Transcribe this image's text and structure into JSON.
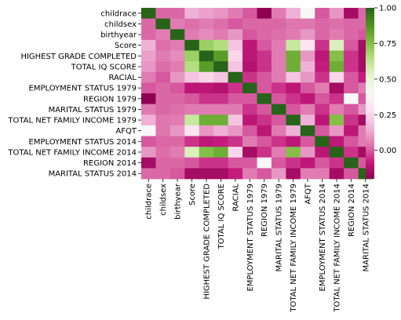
{
  "chart_data": {
    "type": "heatmap",
    "title": "",
    "xlabel": "",
    "ylabel": "",
    "variables": [
      "childrace",
      "childsex",
      "birthyear",
      "Score",
      "HIGHEST GRADE COMPLETED",
      "TOTAL IQ SCORE",
      "RACIAL",
      "EMPLOYMENT STATUS 1979",
      "REGION 1979",
      "MARITAL STATUS 1979",
      "TOTAL NET FAMILY INCOME 1979",
      "AFQT",
      "EMPLOYMENT STATUS 2014",
      "TOTAL NET FAMILY INCOME 2014",
      "REGION 2014",
      "MARITAL STATUS 2014"
    ],
    "matrix": [
      [
        1.0,
        0.02,
        0.02,
        0.15,
        0.12,
        0.1,
        0.05,
        0.0,
        -0.2,
        0.05,
        0.15,
        0.4,
        0.0,
        0.1,
        -0.15,
        0.02
      ],
      [
        0.02,
        1.0,
        0.05,
        0.03,
        0.05,
        0.03,
        0.0,
        0.02,
        0.02,
        0.02,
        0.04,
        0.04,
        0.02,
        0.03,
        0.02,
        0.02
      ],
      [
        0.02,
        0.05,
        1.0,
        0.05,
        0.08,
        0.05,
        0.1,
        0.0,
        0.02,
        0.03,
        0.05,
        0.1,
        0.02,
        0.05,
        0.02,
        0.0
      ],
      [
        0.15,
        0.03,
        0.05,
        1.0,
        0.7,
        0.65,
        0.2,
        -0.1,
        0.0,
        0.05,
        0.6,
        0.3,
        -0.05,
        0.55,
        0.0,
        -0.15
      ],
      [
        0.12,
        0.05,
        0.08,
        0.7,
        1.0,
        0.85,
        0.25,
        -0.1,
        -0.05,
        0.05,
        0.8,
        0.1,
        -0.1,
        0.75,
        -0.05,
        -0.15
      ],
      [
        0.1,
        0.03,
        0.05,
        0.65,
        0.85,
        1.0,
        0.2,
        -0.12,
        -0.05,
        0.05,
        0.8,
        0.15,
        -0.08,
        0.8,
        -0.05,
        -0.15
      ],
      [
        0.05,
        0.0,
        0.1,
        0.2,
        0.25,
        0.2,
        1.0,
        -0.05,
        0.0,
        0.05,
        0.2,
        0.1,
        -0.05,
        0.25,
        0.0,
        -0.08
      ],
      [
        0.0,
        0.02,
        0.0,
        -0.1,
        -0.1,
        -0.12,
        -0.05,
        1.0,
        0.0,
        -0.05,
        -0.1,
        0.0,
        0.05,
        -0.15,
        0.0,
        0.05
      ],
      [
        -0.2,
        0.02,
        0.02,
        0.0,
        -0.05,
        -0.05,
        0.0,
        0.0,
        1.0,
        0.0,
        -0.05,
        -0.1,
        0.0,
        -0.05,
        0.4,
        0.0
      ],
      [
        0.05,
        0.02,
        0.03,
        0.05,
        0.05,
        0.05,
        0.05,
        -0.05,
        0.0,
        1.0,
        0.0,
        0.05,
        -0.05,
        0.05,
        0.0,
        0.1
      ],
      [
        0.15,
        0.04,
        0.05,
        0.6,
        0.8,
        0.8,
        0.2,
        -0.1,
        -0.05,
        0.0,
        1.0,
        0.15,
        -0.1,
        0.75,
        -0.05,
        -0.15
      ],
      [
        0.4,
        0.04,
        0.1,
        0.3,
        0.1,
        0.15,
        0.1,
        0.0,
        -0.1,
        0.05,
        0.15,
        1.0,
        0.0,
        0.1,
        -0.1,
        0.05
      ],
      [
        0.0,
        0.02,
        0.02,
        -0.05,
        -0.1,
        -0.08,
        -0.05,
        0.05,
        0.0,
        -0.05,
        -0.1,
        0.0,
        1.0,
        -0.1,
        0.0,
        0.05
      ],
      [
        0.1,
        0.03,
        0.05,
        0.55,
        0.75,
        0.8,
        0.25,
        -0.15,
        -0.05,
        0.05,
        0.75,
        0.1,
        -0.1,
        1.0,
        -0.05,
        -0.15
      ],
      [
        -0.15,
        0.02,
        0.02,
        0.0,
        -0.05,
        -0.05,
        0.0,
        0.0,
        0.4,
        0.0,
        -0.05,
        -0.1,
        0.0,
        -0.05,
        1.0,
        0.0
      ],
      [
        0.02,
        0.02,
        0.0,
        -0.15,
        -0.15,
        -0.15,
        -0.08,
        0.05,
        0.0,
        0.1,
        -0.15,
        0.05,
        0.05,
        -0.15,
        0.0,
        1.0
      ]
    ],
    "colorscale": "PiYG",
    "vmin": -0.2,
    "vmax": 1.0,
    "colorbar_ticks": [
      "1.00",
      "0.75",
      "0.50",
      "0.25",
      "0.00"
    ],
    "colorbar_tick_values": [
      1.0,
      0.75,
      0.5,
      0.25,
      0.0
    ],
    "grid": false
  }
}
